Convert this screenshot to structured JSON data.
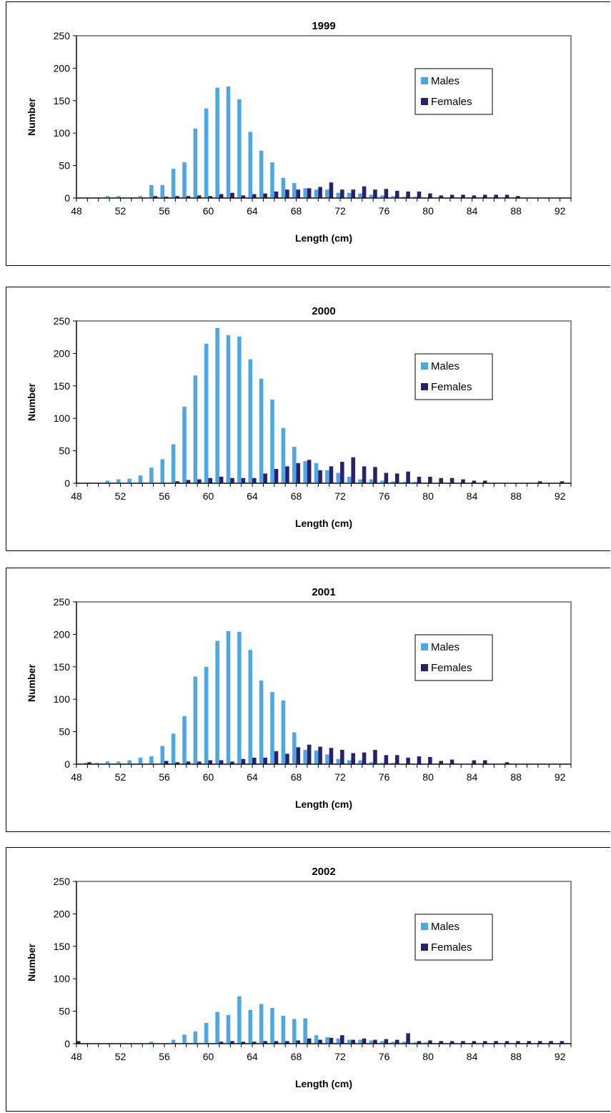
{
  "charts": [
    {
      "title": "1999",
      "xlabel": "Length (cm)",
      "ylabel": "Number",
      "legend": [
        "Males",
        "Females"
      ],
      "colors": {
        "males": "#4aa8e6",
        "females": "#2c1f6e"
      }
    },
    {
      "title": "2000",
      "xlabel": "Length (cm)",
      "ylabel": "Number",
      "legend": [
        "Males",
        "Females"
      ],
      "colors": {
        "males": "#4aa8e6",
        "females": "#2c1f6e"
      }
    },
    {
      "title": "2001",
      "xlabel": "Length (cm)",
      "ylabel": "Number",
      "legend": [
        "Males",
        "Females"
      ],
      "colors": {
        "males": "#4aa8e6",
        "females": "#2c1f6e"
      }
    },
    {
      "title": "2002",
      "xlabel": "Length (cm)",
      "ylabel": "Number",
      "legend": [
        "Males",
        "Females"
      ],
      "colors": {
        "males": "#4aa8e6",
        "females": "#2c1f6e"
      }
    }
  ],
  "chart_data": [
    {
      "type": "bar",
      "title": "1999",
      "xlabel": "Length (cm)",
      "ylabel": "Number",
      "xlim": [
        48,
        93
      ],
      "xticks": [
        48,
        52,
        56,
        60,
        64,
        68,
        72,
        76,
        80,
        84,
        88,
        92
      ],
      "ylim": [
        0,
        250
      ],
      "yticks": [
        0,
        50,
        100,
        150,
        200,
        250
      ],
      "legend_position": "right",
      "categories": [
        48,
        49,
        50,
        51,
        52,
        53,
        54,
        55,
        56,
        57,
        58,
        59,
        60,
        61,
        62,
        63,
        64,
        65,
        66,
        67,
        68,
        69,
        70,
        71,
        72,
        73,
        74,
        75,
        76,
        77,
        78,
        79,
        80,
        81,
        82,
        83,
        84,
        85,
        86,
        87,
        88,
        89,
        90,
        91,
        92
      ],
      "series": [
        {
          "name": "Males",
          "values": [
            0,
            0,
            0,
            3,
            3,
            0,
            3,
            20,
            20,
            45,
            55,
            107,
            138,
            170,
            172,
            152,
            102,
            73,
            55,
            31,
            23,
            15,
            13,
            13,
            8,
            8,
            7,
            5,
            4,
            3,
            2,
            2,
            1,
            1,
            1,
            1,
            1,
            0,
            0,
            0,
            0,
            0,
            0,
            0,
            0
          ]
        },
        {
          "name": "Females",
          "values": [
            0,
            0,
            0,
            0,
            0,
            0,
            0,
            3,
            2,
            3,
            3,
            4,
            3,
            6,
            8,
            4,
            6,
            7,
            10,
            13,
            13,
            15,
            17,
            24,
            13,
            13,
            18,
            13,
            14,
            11,
            10,
            10,
            7,
            4,
            5,
            5,
            4,
            5,
            5,
            5,
            3,
            0,
            0,
            0,
            0
          ]
        }
      ]
    },
    {
      "type": "bar",
      "title": "2000",
      "xlabel": "Length (cm)",
      "ylabel": "Number",
      "xlim": [
        48,
        93
      ],
      "xticks": [
        48,
        52,
        56,
        60,
        64,
        68,
        72,
        76,
        80,
        84,
        88,
        92
      ],
      "ylim": [
        0,
        250
      ],
      "yticks": [
        0,
        50,
        100,
        150,
        200,
        250
      ],
      "legend_position": "right",
      "categories": [
        48,
        49,
        50,
        51,
        52,
        53,
        54,
        55,
        56,
        57,
        58,
        59,
        60,
        61,
        62,
        63,
        64,
        65,
        66,
        67,
        68,
        69,
        70,
        71,
        72,
        73,
        74,
        75,
        76,
        77,
        78,
        79,
        80,
        81,
        82,
        83,
        84,
        85,
        86,
        87,
        88,
        89,
        90,
        91,
        92
      ],
      "series": [
        {
          "name": "Males",
          "values": [
            0,
            0,
            0,
            4,
            6,
            7,
            12,
            24,
            37,
            60,
            118,
            166,
            215,
            239,
            228,
            226,
            191,
            161,
            129,
            85,
            56,
            34,
            31,
            20,
            16,
            10,
            6,
            6,
            4,
            3,
            2,
            2,
            1,
            1,
            1,
            0,
            0,
            0,
            0,
            0,
            0,
            0,
            0,
            0,
            0
          ]
        },
        {
          "name": "Females",
          "values": [
            0,
            0,
            0,
            0,
            0,
            0,
            0,
            0,
            0,
            3,
            5,
            6,
            8,
            10,
            8,
            8,
            8,
            15,
            22,
            26,
            31,
            36,
            20,
            26,
            33,
            40,
            26,
            25,
            16,
            15,
            18,
            10,
            10,
            8,
            8,
            6,
            4,
            4,
            0,
            0,
            0,
            0,
            3,
            0,
            3
          ]
        }
      ]
    },
    {
      "type": "bar",
      "title": "2001",
      "xlabel": "Length (cm)",
      "ylabel": "Number",
      "xlim": [
        48,
        93
      ],
      "xticks": [
        48,
        52,
        56,
        60,
        64,
        68,
        72,
        76,
        80,
        84,
        88,
        92
      ],
      "ylim": [
        0,
        250
      ],
      "yticks": [
        0,
        50,
        100,
        150,
        200,
        250
      ],
      "legend_position": "right",
      "categories": [
        48,
        49,
        50,
        51,
        52,
        53,
        54,
        55,
        56,
        57,
        58,
        59,
        60,
        61,
        62,
        63,
        64,
        65,
        66,
        67,
        68,
        69,
        70,
        71,
        72,
        73,
        74,
        75,
        76,
        77,
        78,
        79,
        80,
        81,
        82,
        83,
        84,
        85,
        86,
        87,
        88,
        89,
        90,
        91,
        92
      ],
      "series": [
        {
          "name": "Males",
          "values": [
            0,
            2,
            2,
            4,
            4,
            6,
            10,
            12,
            28,
            47,
            74,
            135,
            150,
            190,
            205,
            204,
            176,
            129,
            111,
            98,
            49,
            22,
            21,
            15,
            8,
            6,
            6,
            3,
            2,
            2,
            1,
            1,
            1,
            0,
            0,
            0,
            0,
            0,
            0,
            0,
            0,
            0,
            0,
            0,
            0
          ]
        },
        {
          "name": "Females",
          "values": [
            0,
            3,
            0,
            0,
            0,
            0,
            0,
            0,
            5,
            3,
            4,
            4,
            6,
            6,
            4,
            8,
            10,
            10,
            20,
            16,
            26,
            30,
            27,
            25,
            22,
            17,
            18,
            22,
            14,
            14,
            10,
            12,
            11,
            5,
            7,
            0,
            6,
            6,
            0,
            3,
            0,
            0,
            0,
            0,
            0
          ]
        }
      ]
    },
    {
      "type": "bar",
      "title": "2002",
      "xlabel": "Length (cm)",
      "ylabel": "Number",
      "xlim": [
        48,
        93
      ],
      "xticks": [
        48,
        52,
        56,
        60,
        64,
        68,
        72,
        76,
        80,
        84,
        88,
        92
      ],
      "ylim": [
        0,
        250
      ],
      "yticks": [
        0,
        50,
        100,
        150,
        200,
        250
      ],
      "legend_position": "right",
      "categories": [
        48,
        49,
        50,
        51,
        52,
        53,
        54,
        55,
        56,
        57,
        58,
        59,
        60,
        61,
        62,
        63,
        64,
        65,
        66,
        67,
        68,
        69,
        70,
        71,
        72,
        73,
        74,
        75,
        76,
        77,
        78,
        79,
        80,
        81,
        82,
        83,
        84,
        85,
        86,
        87,
        88,
        89,
        90,
        91,
        92
      ],
      "series": [
        {
          "name": "Males",
          "values": [
            0,
            0,
            0,
            0,
            0,
            0,
            0,
            3,
            1,
            6,
            14,
            19,
            32,
            49,
            44,
            73,
            52,
            61,
            55,
            43,
            38,
            39,
            13,
            10,
            8,
            6,
            6,
            5,
            4,
            3,
            3,
            2,
            2,
            1,
            1,
            1,
            1,
            1,
            1,
            1,
            1,
            1,
            1,
            1,
            1
          ]
        },
        {
          "name": "Females",
          "values": [
            4,
            0,
            0,
            0,
            0,
            0,
            0,
            0,
            0,
            0,
            0,
            0,
            0,
            3,
            4,
            3,
            3,
            4,
            4,
            4,
            5,
            8,
            6,
            9,
            13,
            6,
            8,
            6,
            7,
            6,
            16,
            4,
            5,
            4,
            4,
            4,
            4,
            4,
            4,
            4,
            4,
            4,
            4,
            4,
            4
          ]
        }
      ]
    }
  ]
}
